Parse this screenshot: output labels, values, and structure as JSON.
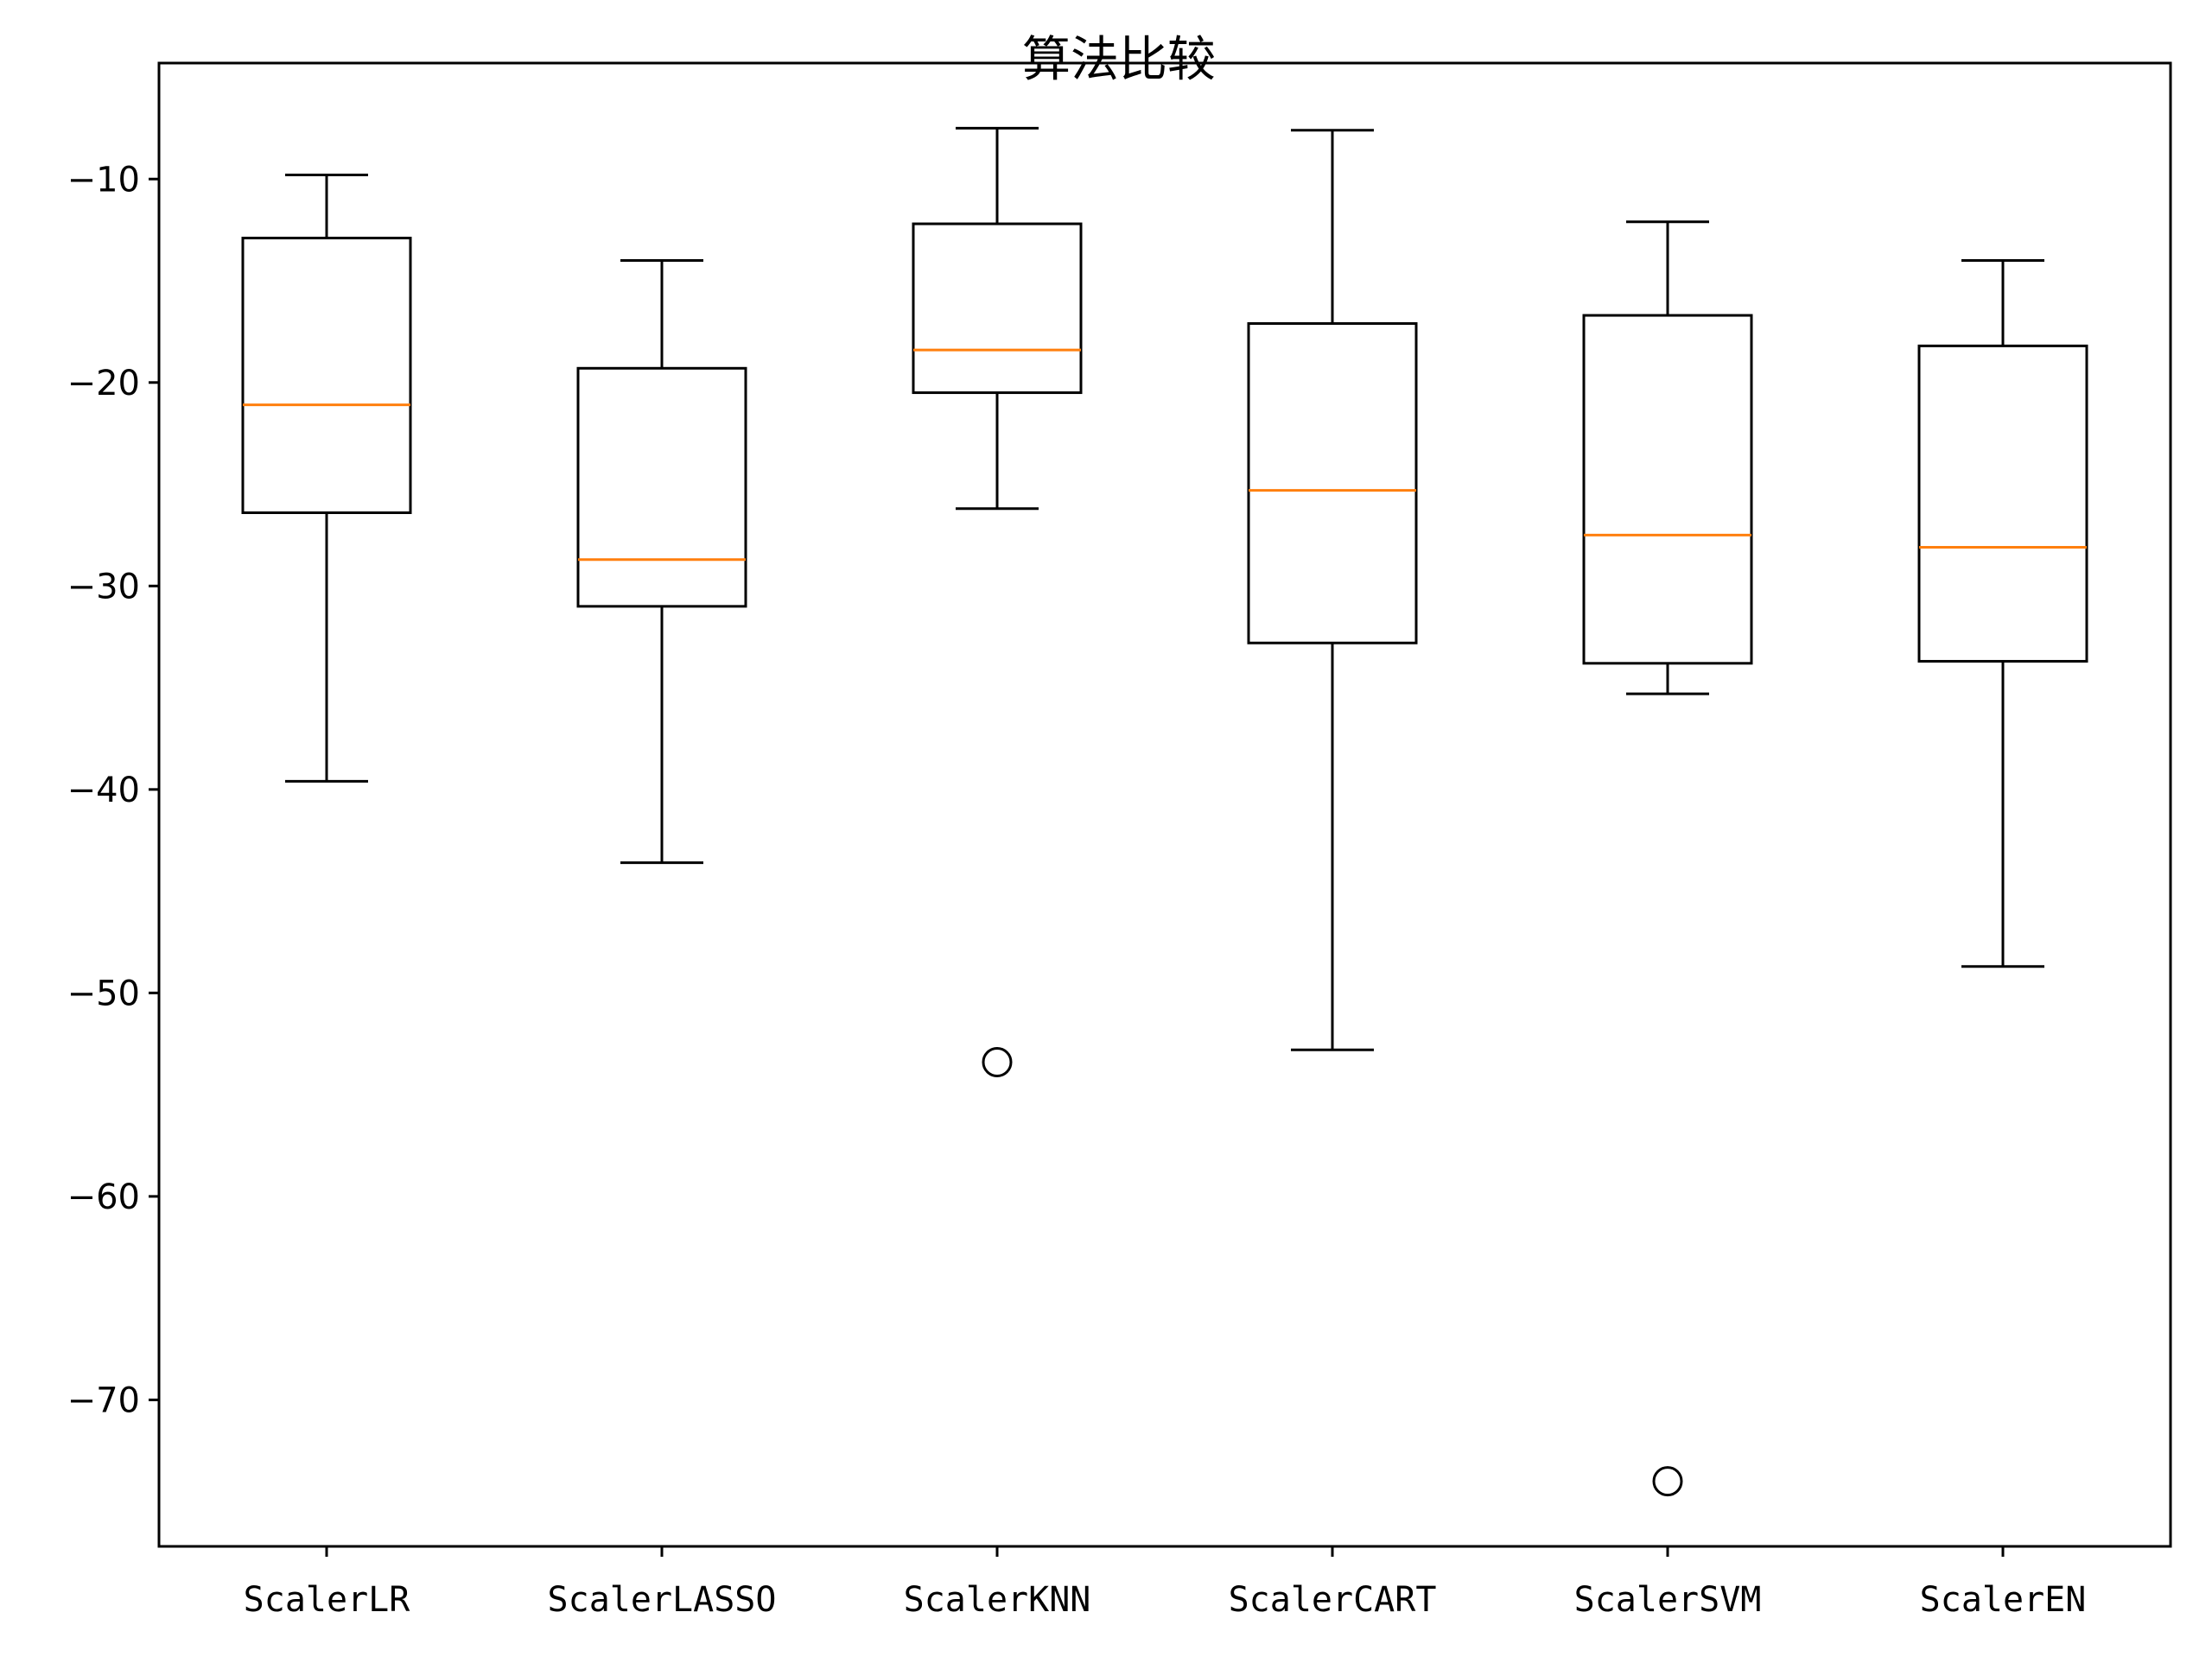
{
  "chart_data": {
    "type": "boxplot",
    "title": "算法比较",
    "xlabel": "",
    "ylabel": "",
    "categories": [
      "ScalerLR",
      "ScalerLASSO",
      "ScalerKNN",
      "ScalerCART",
      "ScalerSVM",
      "ScalerEN"
    ],
    "ylim": [
      -77.2,
      -4.3
    ],
    "yticks": [
      -10,
      -20,
      -30,
      -40,
      -50,
      -60,
      -70
    ],
    "ytick_labels": [
      "−10",
      "−20",
      "−30",
      "−40",
      "−50",
      "−60",
      "−70"
    ],
    "grid": false,
    "boxes": [
      {
        "name": "ScalerLR",
        "whisker_low": -39.6,
        "q1": -26.4,
        "median": -21.1,
        "q3": -12.9,
        "whisker_high": -9.8,
        "outliers": []
      },
      {
        "name": "ScalerLASSO",
        "whisker_low": -43.6,
        "q1": -31.0,
        "median": -28.7,
        "q3": -19.3,
        "whisker_high": -14.0,
        "outliers": []
      },
      {
        "name": "ScalerKNN",
        "whisker_low": -26.2,
        "q1": -20.5,
        "median": -18.4,
        "q3": -12.2,
        "whisker_high": -7.5,
        "outliers": [
          -53.4
        ]
      },
      {
        "name": "ScalerCART",
        "whisker_low": -52.8,
        "q1": -32.8,
        "median": -25.3,
        "q3": -17.1,
        "whisker_high": -7.6,
        "outliers": []
      },
      {
        "name": "ScalerSVM",
        "whisker_low": -35.3,
        "q1": -33.8,
        "median": -27.5,
        "q3": -16.7,
        "whisker_high": -12.1,
        "outliers": [
          -74.0
        ]
      },
      {
        "name": "ScalerEN",
        "whisker_low": -48.7,
        "q1": -33.7,
        "median": -28.1,
        "q3": -18.2,
        "whisker_high": -14.0,
        "outliers": []
      }
    ],
    "colors": {
      "box": "#000000",
      "median": "#ff7f0e",
      "outlier": "#000000"
    }
  }
}
